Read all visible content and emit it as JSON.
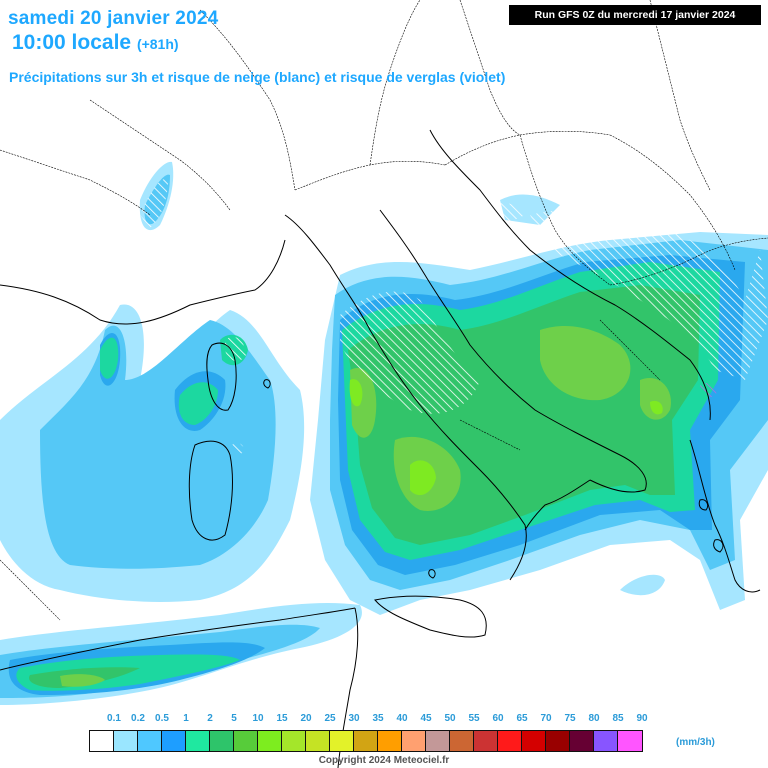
{
  "header": {
    "date": "samedi 20 janvier 2024",
    "time": "10:00 locale",
    "offset": "(+81h)",
    "subtitle": "Précipitations sur 3h et risque de neige (blanc) et risque de verglas (violet)",
    "run_info": "Run GFS 0Z du mercredi 17 janvier 2024"
  },
  "legend": {
    "ticks": [
      "0.1",
      "0.2",
      "0.5",
      "1",
      "2",
      "5",
      "10",
      "15",
      "20",
      "25",
      "30",
      "35",
      "40",
      "45",
      "50",
      "55",
      "60",
      "65",
      "70",
      "75",
      "80",
      "85",
      "90"
    ],
    "unit": "(mm/3h)",
    "colors": [
      "#ffffff",
      "#9ae6ff",
      "#4fc8ff",
      "#1e9eff",
      "#1fe8a0",
      "#2ec46a",
      "#57cc3a",
      "#7ded1f",
      "#a4e62a",
      "#c5e324",
      "#e3f229",
      "#d2a414",
      "#ff9e00",
      "#ffa070",
      "#c39898",
      "#cc6633",
      "#cc3333",
      "#ff1a1a",
      "#d40000",
      "#990000",
      "#660033",
      "#8855ff",
      "#ff55ff"
    ]
  },
  "footer": {
    "copyright": "Copyright 2024 Meteociel.fr"
  },
  "map": {
    "precip_colors": {
      "light_blue": "#a6e6ff",
      "blue": "#55c8f6",
      "dark_blue": "#2aa8ee",
      "teal": "#1cd8a0",
      "green": "#32c46a",
      "lime": "#6ed04a",
      "bright_lime": "#7eea22"
    },
    "snow_hatch": "#ffffff",
    "freezing_rain": "#b070e0"
  }
}
